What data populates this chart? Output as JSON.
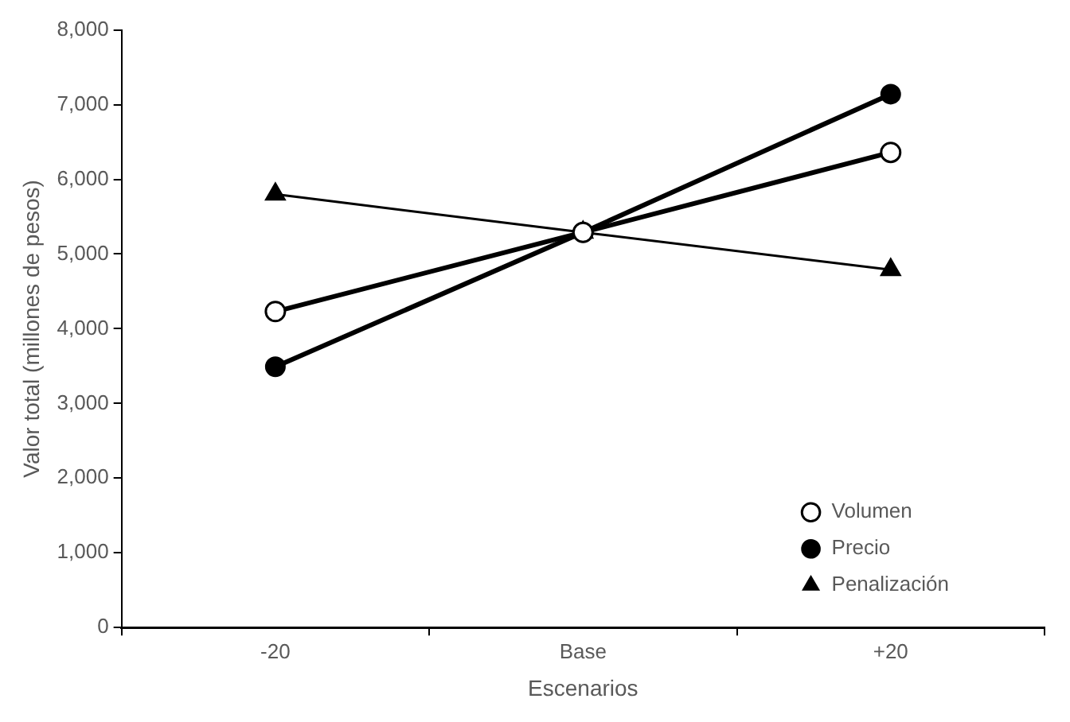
{
  "chart_data": {
    "type": "line",
    "xlabel": "Escenarios",
    "ylabel": "Valor total (millones de pesos)",
    "categories": [
      "-20",
      "Base",
      "+20"
    ],
    "series": [
      {
        "name": "Volumen",
        "color": "#000000",
        "values": [
          4230,
          5290,
          6360
        ],
        "marker": "circle-open"
      },
      {
        "name": "Precio",
        "color": "#000000",
        "values": [
          3490,
          5290,
          7140
        ],
        "marker": "circle"
      },
      {
        "name": "Penalización",
        "color": "#000000",
        "values": [
          5800,
          5290,
          4790
        ],
        "marker": "triangle"
      }
    ],
    "ylim": [
      0,
      8000
    ],
    "yticks": [
      {
        "value": 0,
        "label": "0"
      },
      {
        "value": 1000,
        "label": "1,000"
      },
      {
        "value": 2000,
        "label": "2,000"
      },
      {
        "value": 3000,
        "label": "3,000"
      },
      {
        "value": 4000,
        "label": "4,000"
      },
      {
        "value": 5000,
        "label": "5,000"
      },
      {
        "value": 6000,
        "label": "6,000"
      },
      {
        "value": 7000,
        "label": "7,000"
      },
      {
        "value": 8000,
        "label": "8,000"
      }
    ],
    "grid": false,
    "legend": "bottom right",
    "line_style": "solid"
  }
}
